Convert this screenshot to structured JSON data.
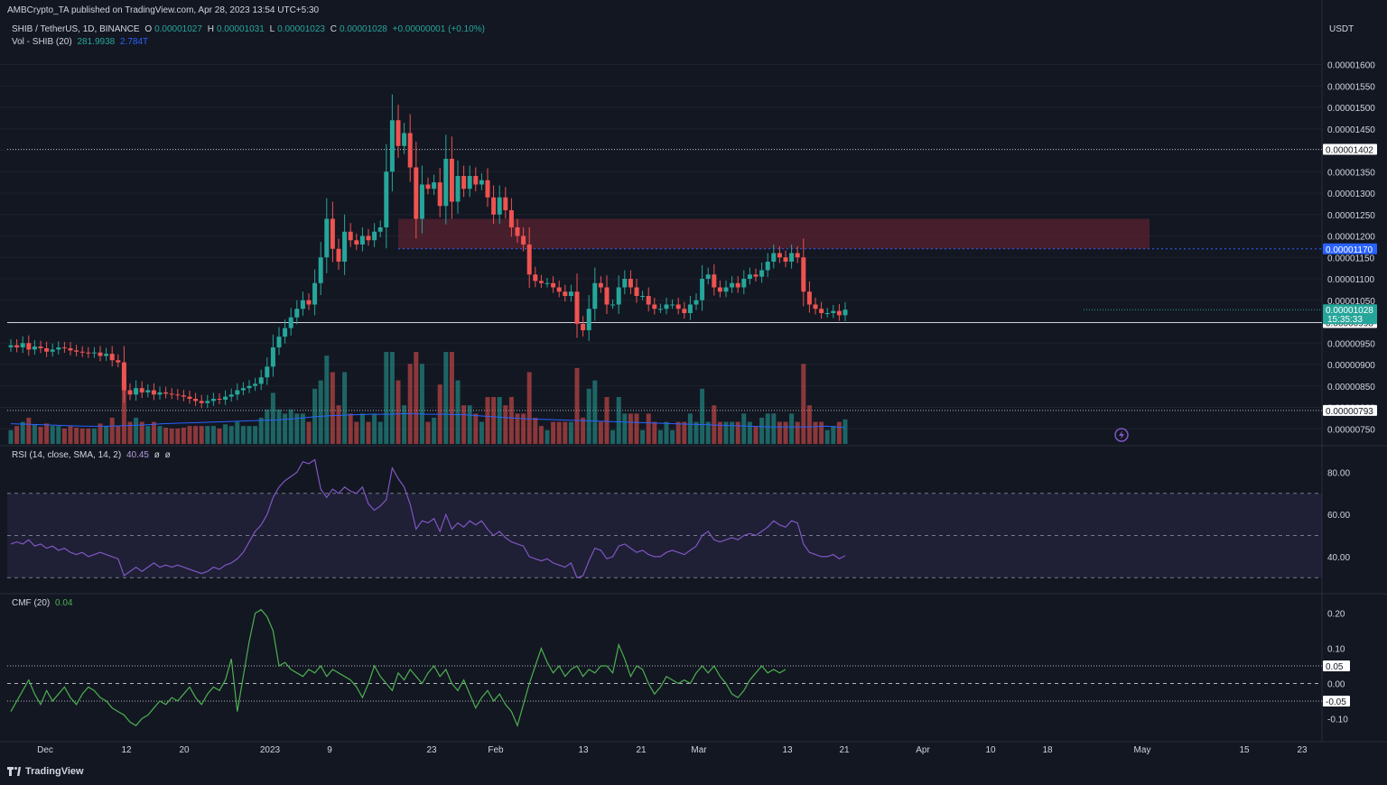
{
  "header": {
    "publisher": "AMBCrypto_TA published on TradingView.com, Apr 28, 2023 13:54 UTC+5:30"
  },
  "legend_main": {
    "symbol": "SHIB / TetherUS, 1D, BINANCE",
    "o_label": "O",
    "o_value": "0.00001027",
    "h_label": "H",
    "h_value": "0.00001031",
    "l_label": "L",
    "l_value": "0.00001023",
    "c_label": "C",
    "c_value": "0.00001028",
    "change": "+0.00000001 (+0.10%)"
  },
  "legend_vol": {
    "label": "Vol - SHIB (20)",
    "v1": "281.9938",
    "v2": "2.784T"
  },
  "legend_rsi": {
    "label": "RSI (14, close, SMA, 14, 2)",
    "v1": "40.45",
    "v2": "ø",
    "v3": "ø"
  },
  "legend_cmf": {
    "label": "CMF (20)",
    "v1": "0.04"
  },
  "footer": {
    "brand": "TradingView"
  },
  "colors": {
    "up": "#26a69a",
    "down": "#ef5350",
    "rsi": "#7e57c2",
    "cmf": "#4caf50",
    "volma": "#2962ff",
    "zone": "#5c2230",
    "axis_text": "#d1d4dc",
    "grid": "#1e222d"
  },
  "chart_data": [
    {
      "type": "candlestick",
      "currency_label": "USDT",
      "y_ticks": [
        "0.00001600",
        "0.00001550",
        "0.00001500",
        "0.00001450",
        "0.00001400",
        "0.00001350",
        "0.00001300",
        "0.00001250",
        "0.00001200",
        "0.00001150",
        "0.00001100",
        "0.00001050",
        "0.00000950",
        "0.00000900",
        "0.00000850",
        "0.00000800",
        "0.00000750"
      ],
      "ylim": [
        7.4e-06,
        1.62e-05
      ],
      "x_ticks": [
        "Dec",
        "12",
        "20",
        "2023",
        "9",
        "23",
        "Feb",
        "13",
        "21",
        "Mar",
        "13",
        "21",
        "Apr",
        "10",
        "18",
        "May",
        "15",
        "23"
      ],
      "levels": [
        {
          "label": "0.00001402",
          "value": 1.402e-05,
          "style": "dotted"
        },
        {
          "label": "0.00001170",
          "value": 1.17e-05,
          "style": "blue-dotted"
        },
        {
          "label": "0.00000998",
          "value": 9.98e-06,
          "style": "solid"
        },
        {
          "label": "0.00000793",
          "value": 7.93e-06,
          "style": "dotted"
        }
      ],
      "current_price": {
        "label": "0.00001028",
        "countdown": "15:35:33",
        "value": 1.028e-05
      },
      "zone": {
        "from": 1.17e-05,
        "to": 1.24e-05,
        "start_index": 65
      },
      "close": [
        9.45,
        9.4,
        9.5,
        9.35,
        9.42,
        9.38,
        9.3,
        9.35,
        9.4,
        9.38,
        9.33,
        9.3,
        9.28,
        9.26,
        9.28,
        9.2,
        9.25,
        9.1,
        9.05,
        8.4,
        8.3,
        8.45,
        8.35,
        8.4,
        8.3,
        8.35,
        8.32,
        8.3,
        8.28,
        8.25,
        8.2,
        8.15,
        8.1,
        8.15,
        8.2,
        8.18,
        8.25,
        8.3,
        8.4,
        8.45,
        8.5,
        8.55,
        8.7,
        8.95,
        9.4,
        9.65,
        9.85,
        10.1,
        10.3,
        10.5,
        10.4,
        10.9,
        11.5,
        12.4,
        11.7,
        11.4,
        12.1,
        11.9,
        11.8,
        12.0,
        11.9,
        12.1,
        12.2,
        13.5,
        14.7,
        14.1,
        14.4,
        13.6,
        12.4,
        13.2,
        13.1,
        13.25,
        12.7,
        13.8,
        12.8,
        13.4,
        13.1,
        13.4,
        13.2,
        13.3,
        12.9,
        12.5,
        12.9,
        12.6,
        12.2,
        12.0,
        11.8,
        11.1,
        10.95,
        10.9,
        10.9,
        10.8,
        10.7,
        10.6,
        10.7,
        9.95,
        9.8,
        10.3,
        10.9,
        10.8,
        10.4,
        10.4,
        10.8,
        11.0,
        10.8,
        10.6,
        10.6,
        10.4,
        10.3,
        10.3,
        10.4,
        10.4,
        10.3,
        10.2,
        10.4,
        10.5,
        11.0,
        11.1,
        10.8,
        10.7,
        10.8,
        10.9,
        10.8,
        11.0,
        11.1,
        11.05,
        11.2,
        11.4,
        11.6,
        11.5,
        11.4,
        11.6,
        11.5,
        10.7,
        10.4,
        10.3,
        10.2,
        10.2,
        10.25,
        10.15,
        10.28
      ],
      "volume_ma": [
        0.32,
        0.31,
        0.3,
        0.29,
        0.28,
        0.28,
        0.29,
        0.3,
        0.32,
        0.33,
        0.34,
        0.35,
        0.36,
        0.37,
        0.38,
        0.4,
        0.43,
        0.45,
        0.46,
        0.47,
        0.47,
        0.48,
        0.47,
        0.47,
        0.46,
        0.44,
        0.42,
        0.4,
        0.39,
        0.38,
        0.37,
        0.36,
        0.35,
        0.34,
        0.33,
        0.32,
        0.31,
        0.3,
        0.29,
        0.28,
        0.27,
        0.27,
        0.27,
        0.28,
        0.26
      ],
      "rsi": {
        "ylim": [
          25,
          90
        ],
        "y_ticks": [
          "80.00",
          "60.00",
          "40.00"
        ],
        "bands": [
          30,
          50,
          70
        ],
        "values": [
          46,
          47,
          46,
          48,
          45,
          46,
          44,
          45,
          43,
          44,
          42,
          41,
          42,
          40,
          41,
          42,
          41,
          40,
          39,
          31,
          33,
          35,
          33,
          35,
          37,
          35,
          36,
          35,
          36,
          35,
          34,
          33,
          32,
          33,
          35,
          34,
          36,
          37,
          39,
          42,
          47,
          52,
          55,
          60,
          68,
          73,
          76,
          78,
          80,
          85,
          84,
          86,
          72,
          68,
          72,
          70,
          73,
          71,
          70,
          73,
          65,
          62,
          64,
          67,
          82,
          77,
          73,
          65,
          53,
          57,
          56,
          58,
          52,
          60,
          53,
          56,
          54,
          57,
          55,
          57,
          53,
          50,
          52,
          49,
          47,
          46,
          45,
          40,
          39,
          38,
          39,
          37,
          36,
          35,
          37,
          30,
          31,
          38,
          44,
          43,
          39,
          40,
          45,
          46,
          44,
          42,
          43,
          41,
          40,
          40,
          42,
          43,
          42,
          41,
          43,
          45,
          50,
          52,
          48,
          47,
          48,
          49,
          48,
          50,
          51,
          50,
          52,
          54,
          57,
          55,
          54,
          57,
          56,
          46,
          42,
          41,
          40,
          40,
          41,
          39,
          40.45
        ]
      },
      "cmf": {
        "ylim": [
          -0.14,
          0.24
        ],
        "y_ticks": [
          "0.20",
          "0.10",
          "0.00",
          "-0.10"
        ],
        "levels": [
          0.05,
          0.0,
          -0.05
        ],
        "level_labels": [
          "0.05",
          "-0.05"
        ],
        "values": [
          -0.08,
          -0.05,
          -0.02,
          0.01,
          -0.03,
          -0.06,
          -0.02,
          -0.05,
          -0.03,
          -0.01,
          -0.04,
          -0.06,
          -0.03,
          -0.01,
          -0.02,
          -0.04,
          -0.05,
          -0.07,
          -0.08,
          -0.09,
          -0.11,
          -0.12,
          -0.1,
          -0.09,
          -0.07,
          -0.05,
          -0.06,
          -0.04,
          -0.05,
          -0.03,
          -0.01,
          -0.04,
          -0.06,
          -0.03,
          -0.01,
          -0.02,
          0.01,
          0.07,
          -0.08,
          0.02,
          0.12,
          0.2,
          0.21,
          0.19,
          0.15,
          0.05,
          0.06,
          0.04,
          0.03,
          0.02,
          0.04,
          0.03,
          0.05,
          0.02,
          0.04,
          0.03,
          0.02,
          0.01,
          -0.01,
          -0.04,
          0.0,
          0.05,
          0.02,
          0.0,
          -0.02,
          0.03,
          0.01,
          0.04,
          0.02,
          0.0,
          0.03,
          0.05,
          0.02,
          0.04,
          0.0,
          -0.02,
          0.01,
          -0.03,
          -0.07,
          -0.04,
          -0.02,
          -0.05,
          -0.03,
          -0.06,
          -0.08,
          -0.12,
          -0.06,
          0.0,
          0.05,
          0.1,
          0.06,
          0.03,
          0.05,
          0.02,
          0.04,
          0.05,
          0.02,
          0.04,
          0.03,
          0.05,
          0.05,
          0.03,
          0.11,
          0.07,
          0.02,
          0.05,
          0.04,
          0.0,
          -0.03,
          -0.01,
          0.02,
          0.01,
          0.0,
          0.01,
          0.0,
          0.03,
          0.05,
          0.03,
          0.05,
          0.02,
          0.0,
          -0.03,
          -0.04,
          -0.02,
          0.01,
          0.03,
          0.05,
          0.03,
          0.04,
          0.03,
          0.04
        ]
      }
    }
  ]
}
